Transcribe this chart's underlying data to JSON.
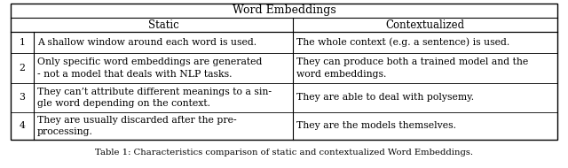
{
  "title": "Word Embeddings",
  "col_headers": [
    "Static",
    "Contextualized"
  ],
  "rows": [
    {
      "num": "1",
      "static": "A shallow window around each word is used.",
      "context": "The whole context (e.g. a sentence) is used."
    },
    {
      "num": "2",
      "static": "Only specific word embeddings are generated\n- not a model that deals with NLP tasks.",
      "context": "They can produce both a trained model and the\nword embeddings."
    },
    {
      "num": "3",
      "static": "They can’t attribute different meanings to a sin-\ngle word depending on the context.",
      "context": "They are able to deal with polysemy."
    },
    {
      "num": "4",
      "static": "They are usually discarded after the pre-\nprocessing.",
      "context": "They are the models themselves."
    }
  ],
  "caption": "Table 1: Characteristics comparison of static and contextualized Word Embeddings.",
  "bg_color": "#ffffff",
  "text_color": "#000000",
  "font_size": 7.8,
  "header_font_size": 8.5,
  "title_font_size": 9.0
}
